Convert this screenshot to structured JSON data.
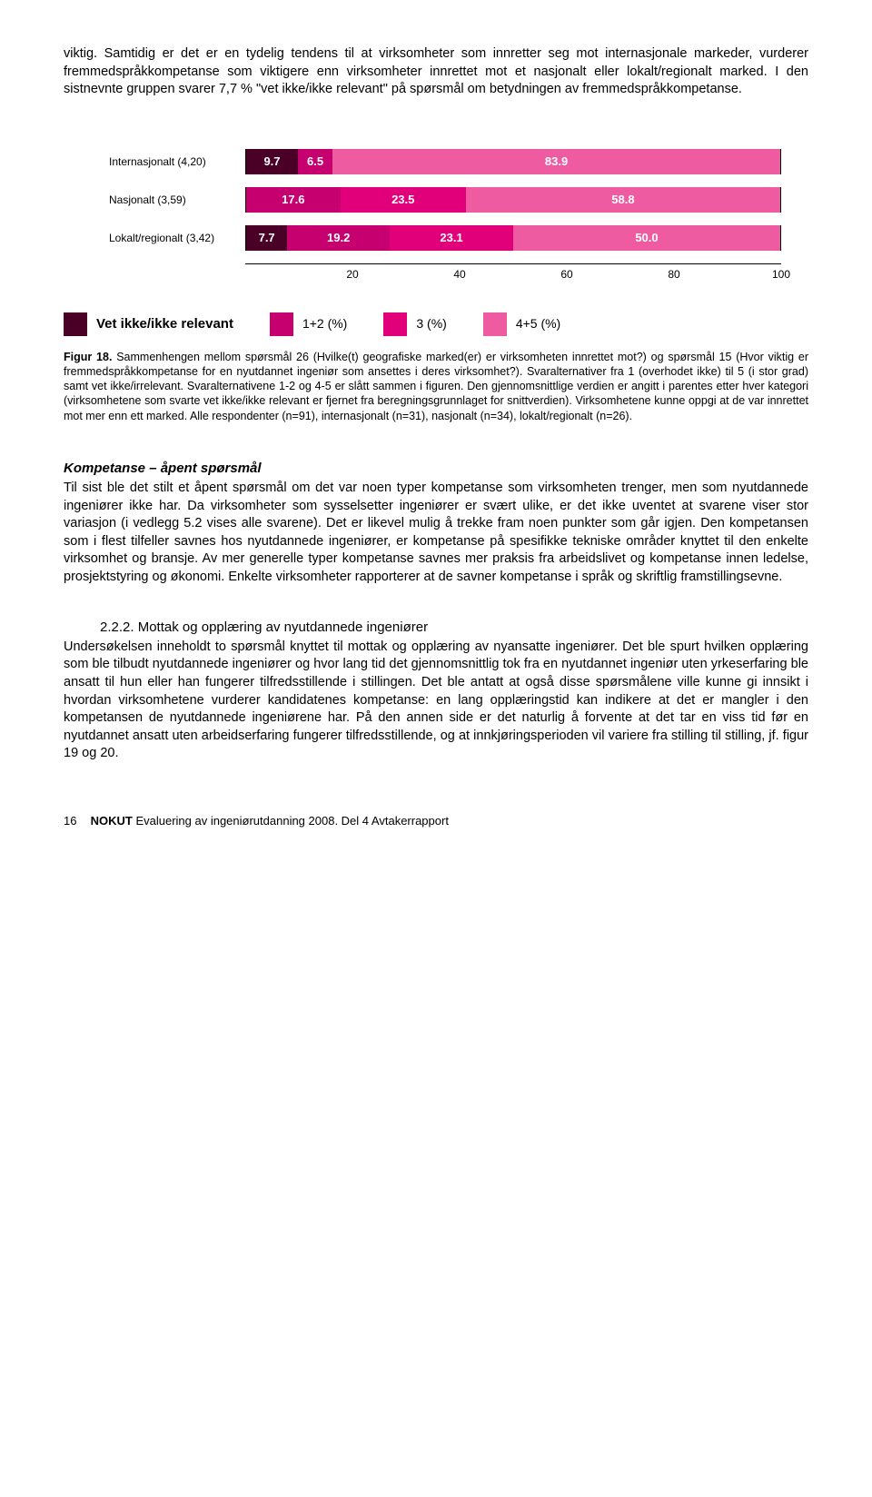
{
  "intro": "viktig. Samtidig er det er en tydelig tendens til at virksomheter som innretter seg mot internasjonale markeder, vurderer fremmedspråkkompetanse som viktigere enn virksomheter innrettet mot et nasjonalt eller lokalt/regionalt marked. I den sistnevnte gruppen svarer 7,7 % \"vet ikke/ikke relevant\" på spørsmål om betydningen av fremmedspråkkompetanse.",
  "chart": {
    "rows": [
      {
        "label": "Internasjonalt (4,20)",
        "segs": [
          {
            "v": 9.7,
            "t": "9.7",
            "c": "#4a0026"
          },
          {
            "v": 6.5,
            "t": "6.5",
            "c": "#c6006f"
          },
          {
            "v": 83.9,
            "t": "83.9",
            "c": "#ef5ba1"
          }
        ]
      },
      {
        "label": "Nasjonalt (3,59)",
        "segs": [
          {
            "v": 17.6,
            "t": "17.6",
            "c": "#c6006f"
          },
          {
            "v": 23.5,
            "t": "23.5",
            "c": "#e2007a"
          },
          {
            "v": 58.8,
            "t": "58.8",
            "c": "#ef5ba1"
          }
        ]
      },
      {
        "label": "Lokalt/regionalt (3,42)",
        "segs": [
          {
            "v": 7.7,
            "t": "7.7",
            "c": "#4a0026"
          },
          {
            "v": 19.2,
            "t": "19.2",
            "c": "#c6006f"
          },
          {
            "v": 23.1,
            "t": "23.1",
            "c": "#e2007a"
          },
          {
            "v": 50.0,
            "t": "50.0",
            "c": "#ef5ba1"
          }
        ]
      }
    ],
    "ticks": [
      "20",
      "40",
      "60",
      "80",
      "100"
    ],
    "legend_title": "Vet ikke/ikke relevant",
    "legend": [
      {
        "c": "#4a0026",
        "t": ""
      },
      {
        "c": "#c6006f",
        "t": "1+2 (%)"
      },
      {
        "c": "#e2007a",
        "t": "3 (%)"
      },
      {
        "c": "#ef5ba1",
        "t": "4+5 (%)"
      }
    ]
  },
  "caption_lead": "Figur 18.",
  "caption": " Sammenhengen mellom spørsmål 26 (Hvilke(t) geografiske marked(er) er virksomheten innrettet mot?) og spørsmål 15 (Hvor viktig er fremmedspråkkompetanse for en nyutdannet ingeniør som ansettes i deres virksomhet?). Svaralternativer fra 1 (overhodet ikke) til 5 (i stor grad) samt vet ikke/irrelevant. Svaralternativene 1-2 og 4-5 er slått sammen i figuren. Den gjennomsnittlige verdien er angitt i parentes etter hver kategori (virksomhetene som svarte vet ikke/ikke relevant er fjernet fra beregningsgrunnlaget for snittverdien). Virksomhetene kunne oppgi at de var innrettet mot mer enn ett marked. Alle respondenter (n=91), internasjonalt (n=31), nasjonalt (n=34), lokalt/regionalt (n=26).",
  "sec1_head": "Kompetanse – åpent spørsmål",
  "sec1": "Til sist ble det stilt et åpent spørsmål om det var noen typer kompetanse som virksomheten trenger, men som nyutdannede ingeniører ikke har. Da virksomheter som sysselsetter ingeniører er svært ulike, er det ikke uventet at svarene viser stor variasjon (i vedlegg 5.2 vises alle svarene). Det er likevel mulig å trekke fram noen punkter som går igjen. Den kompetansen som i flest tilfeller savnes hos nyutdannede ingeniører, er kompetanse på spesifikke tekniske områder knyttet til den enkelte virksomhet og bransje. Av mer generelle typer kompetanse savnes mer praksis fra arbeidslivet og kompetanse innen ledelse, prosjektstyring og økonomi. Enkelte virksomheter rapporterer at de savner kompetanse i språk og skriftlig framstillingsevne.",
  "sec2_num": "2.2.2.  Mottak og opplæring av nyutdannede ingeniører",
  "sec2": "Undersøkelsen inneholdt to spørsmål knyttet til mottak og opplæring av nyansatte ingeniører. Det ble spurt hvilken opplæring som ble tilbudt nyutdannede ingeniører og hvor lang tid det gjennomsnittlig tok fra en nyutdannet ingeniør uten yrkeserfaring ble ansatt til hun eller han fungerer tilfredsstillende i stillingen. Det ble antatt at også disse spørsmålene ville kunne gi innsikt i hvordan virksomhetene vurderer kandidatenes kompetanse: en lang opplæringstid kan indikere at det er mangler i den kompetansen de nyutdannede ingeniørene har. På den annen side er det naturlig å forvente at det tar en viss tid før en nyutdannet ansatt uten arbeidserfaring fungerer tilfredsstillende, og at innkjøringsperioden vil variere fra stilling til stilling, jf. figur 19 og 20.",
  "footer_page": "16",
  "footer_brand": "NOKUT",
  "footer_rest": " Evaluering av ingeniørutdanning 2008. Del 4 Avtakerrapport"
}
